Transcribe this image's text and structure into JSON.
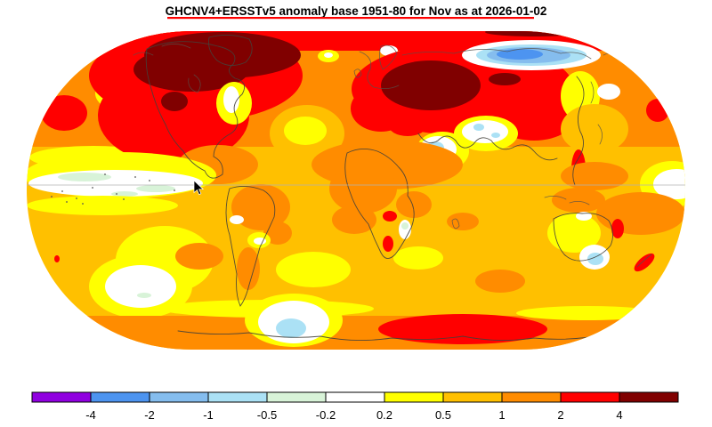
{
  "title": "GHCNV4+ERSSTv5 anomaly base 1951-80 for Nov as at 2026-01-02",
  "chart_data": {
    "type": "heatmap",
    "subtype": "global-surface-temperature-anomaly-map",
    "projection": "Robinson-style world map",
    "dataset": "GHCNV4+ERSSTv5",
    "base_period": "1951-80",
    "month": "Nov",
    "as_at_date": "2026-01-02",
    "units": "degC anomaly",
    "title": "GHCNV4+ERSSTv5 anomaly base 1951-80 for Nov as at 2026-01-02",
    "legend": {
      "position": "bottom",
      "tick_labels": [
        "-4",
        "-2",
        "-1",
        "-0.5",
        "-0.2",
        "0.2",
        "0.5",
        "1",
        "2",
        "4"
      ],
      "bands": [
        {
          "range": "< -4",
          "color": "#9000E0"
        },
        {
          "range": "-4 to -2",
          "color": "#4D94F0"
        },
        {
          "range": "-2 to -1",
          "color": "#85BDEE"
        },
        {
          "range": "-1 to -0.5",
          "color": "#ABE1F5"
        },
        {
          "range": "-0.5 to -0.2",
          "color": "#D8F3D8"
        },
        {
          "range": "-0.2 to 0.2",
          "color": "#FFFFFF"
        },
        {
          "range": "0.2 to 0.5",
          "color": "#FFFF00"
        },
        {
          "range": "0.5 to 1",
          "color": "#FFC000"
        },
        {
          "range": "1 to 2",
          "color": "#FF8C00"
        },
        {
          "range": "2 to 4",
          "color": "#FF0000"
        },
        {
          "range": "> 4",
          "color": "#800000"
        }
      ]
    },
    "regions": [
      {
        "name": "Greenland / NE Canada / Canadian Arctic",
        "anomaly": "> 4",
        "band_index": 10
      },
      {
        "name": "Canada and western United States",
        "anomaly": "2 to 4",
        "band_index": 9
      },
      {
        "name": "SW United States hotspot",
        "anomaly": "> 4",
        "band_index": 10
      },
      {
        "name": "Great Lakes / NE United States",
        "anomaly": "-0.2 to 0.5",
        "band_index": 5
      },
      {
        "name": "North Atlantic mid-latitudes",
        "anomaly": "0.2 to 1",
        "band_index": 7
      },
      {
        "name": "Europe",
        "anomaly": "1 to 2",
        "band_index": 8
      },
      {
        "name": "Eastern Europe / Turkey / Iran",
        "anomaly": "2 to 4",
        "band_index": 9
      },
      {
        "name": "West Siberia / Urals",
        "anomaly": "> 4",
        "band_index": 10
      },
      {
        "name": "Siberia and East Asia",
        "anomaly": "2 to 4",
        "band_index": 9
      },
      {
        "name": "Arctic coast of East Siberia (Laptev / East Siberian Sea)",
        "anomaly": "-4 to -1",
        "band_index": 1
      },
      {
        "name": "Kamchatka / Sea of Okhotsk",
        "anomaly": "0.2 to 0.5",
        "band_index": 6
      },
      {
        "name": "NW Pacific",
        "anomaly": "1 to 2",
        "band_index": 8
      },
      {
        "name": "Arabian Peninsula / Persian Gulf",
        "anomaly": "-1 to 0.2",
        "band_index": 3
      },
      {
        "name": "Northern India / Himalaya",
        "anomaly": "-0.5 to 0.2",
        "band_index": 4
      },
      {
        "name": "Africa",
        "anomaly": "0.5 to 2",
        "band_index": 8
      },
      {
        "name": "Equatorial East Pacific (La Nina-like cool band)",
        "anomaly": "-0.5 to 0.2",
        "band_index": 5
      },
      {
        "name": "South America",
        "anomaly": "0.5 to 2",
        "band_index": 8
      },
      {
        "name": "South Pacific mid-latitude patch",
        "anomaly": "-0.2 to 0.2",
        "band_index": 5
      },
      {
        "name": "Australia interior",
        "anomaly": "0.2 to 1",
        "band_index": 6
      },
      {
        "name": "SE Australia",
        "anomaly": "-1 to -0.2",
        "band_index": 3
      },
      {
        "name": "Queensland coast",
        "anomaly": "2 to 4",
        "band_index": 9
      },
      {
        "name": "New Zealand",
        "anomaly": "2 to 4",
        "band_index": 9
      },
      {
        "name": "Southern Indian Ocean / East Antarctic coast",
        "anomaly": "2 to 4",
        "band_index": 9
      },
      {
        "name": "Antarctic Peninsula sector",
        "anomaly": "-1 to 0.2",
        "band_index": 3
      },
      {
        "name": "Southern oceans generally",
        "anomaly": "0.2 to 1",
        "band_index": 7
      }
    ]
  }
}
